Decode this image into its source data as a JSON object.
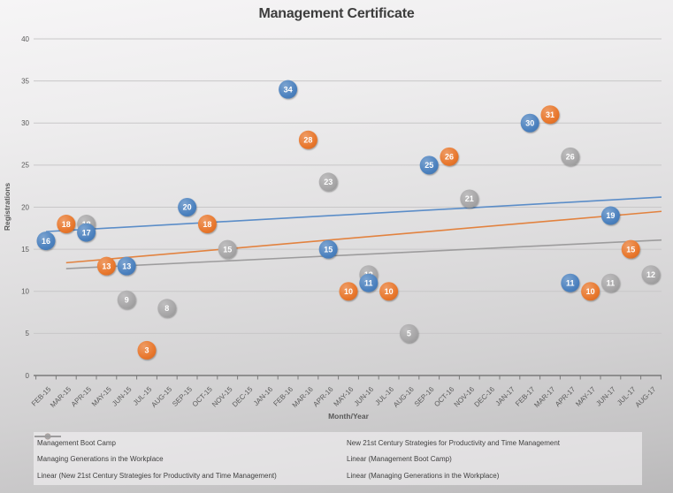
{
  "title": "Management Certificate",
  "colors": {
    "series_blue": "#4A80BE",
    "series_orange": "#E8762B",
    "series_gray": "#A6A5A6",
    "trend_blue": "#5B8DC8",
    "trend_orange": "#E2823F",
    "trend_gray": "#9D9C9D",
    "axis_text": "#595959",
    "axis_line": "#7a7a7a",
    "gridline": "#c8c7c8"
  },
  "chart_data": {
    "type": "scatter",
    "title": "Management Certificate",
    "xlabel": "Month/Year",
    "ylabel": "Registrations",
    "ylim": [
      0,
      40
    ],
    "yticks": [
      0,
      5,
      10,
      15,
      20,
      25,
      30,
      35,
      40
    ],
    "grid": true,
    "legend_position": "bottom",
    "categories": [
      "FEB-15",
      "MAR-15",
      "APR-15",
      "MAY-15",
      "JUN-15",
      "JUL-15",
      "AUG-15",
      "SEP-15",
      "OCT-15",
      "NOV-15",
      "DEC-15",
      "JAN-16",
      "FEB-16",
      "MAR-16",
      "APR-16",
      "MAY-16",
      "JUN-16",
      "JUL-16",
      "AUG-16",
      "SEP-16",
      "OCT-16",
      "NOV-16",
      "DEC-16",
      "JAN-17",
      "FEB-17",
      "MAR-17",
      "APR-17",
      "MAY-17",
      "JUN-17",
      "JUL-17",
      "AUG-17"
    ],
    "series": [
      {
        "name": "Management Boot Camp",
        "color": "#4A80BE",
        "points": [
          [
            "FEB-15",
            16
          ],
          [
            "APR-15",
            17
          ],
          [
            "JUN-15",
            13
          ],
          [
            "SEP-15",
            20
          ],
          [
            "FEB-16",
            34
          ],
          [
            "APR-16",
            15
          ],
          [
            "JUN-16",
            11
          ],
          [
            "SEP-16",
            25
          ],
          [
            "FEB-17",
            30
          ],
          [
            "APR-17",
            11
          ],
          [
            "JUN-17",
            19
          ]
        ]
      },
      {
        "name": "New 21st Century Strategies for Productivity and Time Management",
        "color": "#E8762B",
        "points": [
          [
            "MAR-15",
            18
          ],
          [
            "MAY-15",
            13
          ],
          [
            "JUL-15",
            3
          ],
          [
            "OCT-15",
            18
          ],
          [
            "MAR-16",
            28
          ],
          [
            "MAY-16",
            10
          ],
          [
            "JUL-16",
            10
          ],
          [
            "OCT-16",
            26
          ],
          [
            "MAR-17",
            31
          ],
          [
            "MAY-17",
            10
          ],
          [
            "JUL-17",
            15
          ]
        ]
      },
      {
        "name": "Managing Generations in the Workplace",
        "color": "#A6A5A6",
        "points": [
          [
            "APR-15",
            18
          ],
          [
            "JUN-15",
            9
          ],
          [
            "AUG-15",
            8
          ],
          [
            "NOV-15",
            15
          ],
          [
            "APR-16",
            23
          ],
          [
            "JUN-16",
            12
          ],
          [
            "AUG-16",
            5
          ],
          [
            "NOV-16",
            21
          ],
          [
            "APR-17",
            26
          ],
          [
            "JUN-17",
            11
          ],
          [
            "AUG-17",
            12
          ]
        ]
      }
    ],
    "trendlines": [
      {
        "name": "Linear (Management Boot Camp)",
        "color": "#5B8DC8",
        "start_category": "FEB-15",
        "start_value": 17.1,
        "end_value": 21.2
      },
      {
        "name": "Linear (New 21st Century Strategies for Productivity and Time Management)",
        "color": "#E2823F",
        "start_category": "MAR-15",
        "start_value": 13.4,
        "end_value": 19.5
      },
      {
        "name": "Linear (Managing Generations in the Workplace)",
        "color": "#9D9C9D",
        "start_category": "MAR-15",
        "start_value": 12.7,
        "end_value": 16.1
      }
    ],
    "legend": [
      {
        "label": "Management Boot Camp",
        "color": "#4A80BE",
        "marker": "line-marker"
      },
      {
        "label": "New 21st Century Strategies for Productivity and Time Management",
        "color": "#E8762B",
        "marker": "line-marker"
      },
      {
        "label": "Managing Generations in the Workplace",
        "color": "#A6A5A6",
        "marker": "line-marker"
      },
      {
        "label": "Linear (Management Boot Camp)",
        "color": "#5B8DC8",
        "marker": "line"
      },
      {
        "label": "Linear (New 21st Century Strategies for Productivity and Time Management)",
        "color": "#E2823F",
        "marker": "line"
      },
      {
        "label": "Linear (Managing Generations in the Workplace)",
        "color": "#9D9C9D",
        "marker": "line"
      }
    ]
  }
}
